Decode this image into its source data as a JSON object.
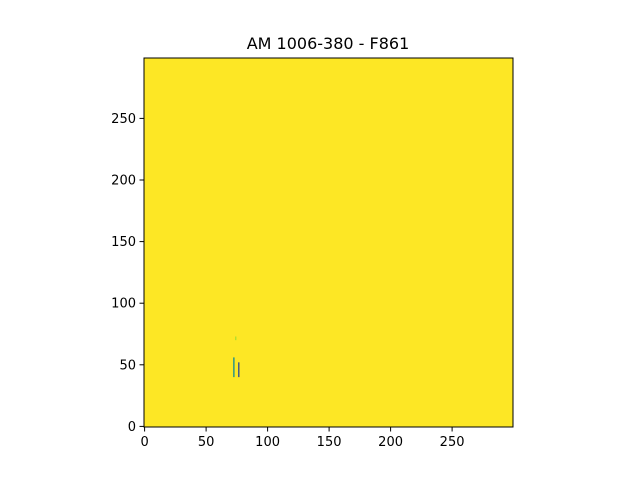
{
  "chart_data": {
    "type": "heatmap",
    "title": "AM 1006-380 - F861",
    "xlabel": "",
    "ylabel": "",
    "xlim": [
      0,
      300
    ],
    "ylim": [
      0,
      300
    ],
    "x_ticks": [
      0,
      50,
      100,
      150,
      200,
      250
    ],
    "y_ticks": [
      0,
      50,
      100,
      150,
      200,
      250
    ],
    "grid": false,
    "background_color": "#fde725",
    "features": [
      {
        "x": 72.5,
        "y_from": 40,
        "y_to": 56,
        "color": "#21918c"
      },
      {
        "x": 76.5,
        "y_from": 40,
        "y_to": 52,
        "color": "#3b528b"
      },
      {
        "x": 74.0,
        "y_from": 70,
        "y_to": 73,
        "color": "#b5de2b"
      }
    ]
  }
}
